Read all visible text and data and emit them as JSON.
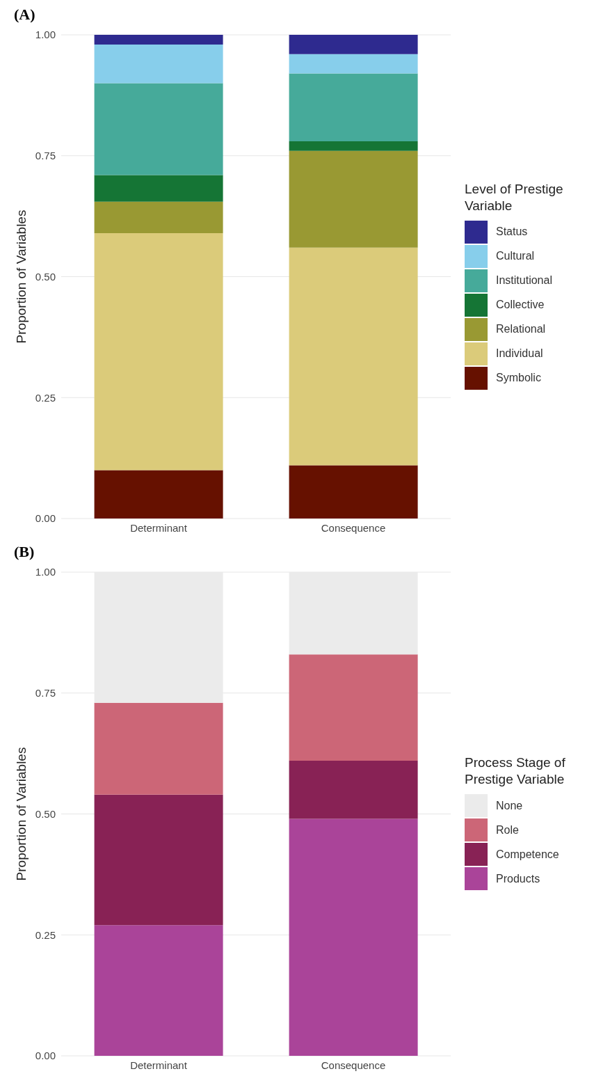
{
  "chart_data": [
    {
      "type": "bar",
      "title": "(A)",
      "ylabel": "Proportion of Variables",
      "legend_title": "Level of Prestige Variable",
      "categories": [
        "Determinant",
        "Consequence"
      ],
      "stacked": true,
      "grid": "y",
      "legend": "right",
      "ylim": [
        0,
        1
      ],
      "yticks": [
        {
          "value": 0,
          "label": "0.00"
        },
        {
          "value": 0.25,
          "label": "0.25"
        },
        {
          "value": 0.5,
          "label": "0.50"
        },
        {
          "value": 0.75,
          "label": "0.75"
        },
        {
          "value": 1,
          "label": "1.00"
        }
      ],
      "series": [
        {
          "name": "Symbolic",
          "color": "#661100",
          "values": [
            0.1,
            0.11
          ]
        },
        {
          "name": "Individual",
          "color": "#dbcb7a",
          "values": [
            0.49,
            0.45
          ]
        },
        {
          "name": "Relational",
          "color": "#999933",
          "values": [
            0.065,
            0.2
          ]
        },
        {
          "name": "Collective",
          "color": "#157535",
          "values": [
            0.055,
            0.02
          ]
        },
        {
          "name": "Institutional",
          "color": "#46aa9a",
          "values": [
            0.19,
            0.14
          ]
        },
        {
          "name": "Cultural",
          "color": "#87ceeb",
          "values": [
            0.08,
            0.04
          ]
        },
        {
          "name": "Status",
          "color": "#2e2a8f",
          "values": [
            0.02,
            0.04
          ]
        }
      ]
    },
    {
      "type": "bar",
      "title": "(B)",
      "ylabel": "Proportion of Variables",
      "legend_title": "Process Stage of Prestige Variable",
      "categories": [
        "Determinant",
        "Consequence"
      ],
      "stacked": true,
      "grid": "y",
      "legend": "right",
      "ylim": [
        0,
        1
      ],
      "yticks": [
        {
          "value": 0,
          "label": "0.00"
        },
        {
          "value": 0.25,
          "label": "0.25"
        },
        {
          "value": 0.5,
          "label": "0.50"
        },
        {
          "value": 0.75,
          "label": "0.75"
        },
        {
          "value": 1,
          "label": "1.00"
        }
      ],
      "series": [
        {
          "name": "Products",
          "color": "#aa4499",
          "values": [
            0.27,
            0.49
          ]
        },
        {
          "name": "Competence",
          "color": "#882255",
          "values": [
            0.27,
            0.12
          ]
        },
        {
          "name": "Role",
          "color": "#cc6677",
          "values": [
            0.19,
            0.22
          ]
        },
        {
          "name": "None",
          "color": "#ebebeb",
          "values": [
            0.27,
            0.17
          ]
        }
      ]
    }
  ]
}
